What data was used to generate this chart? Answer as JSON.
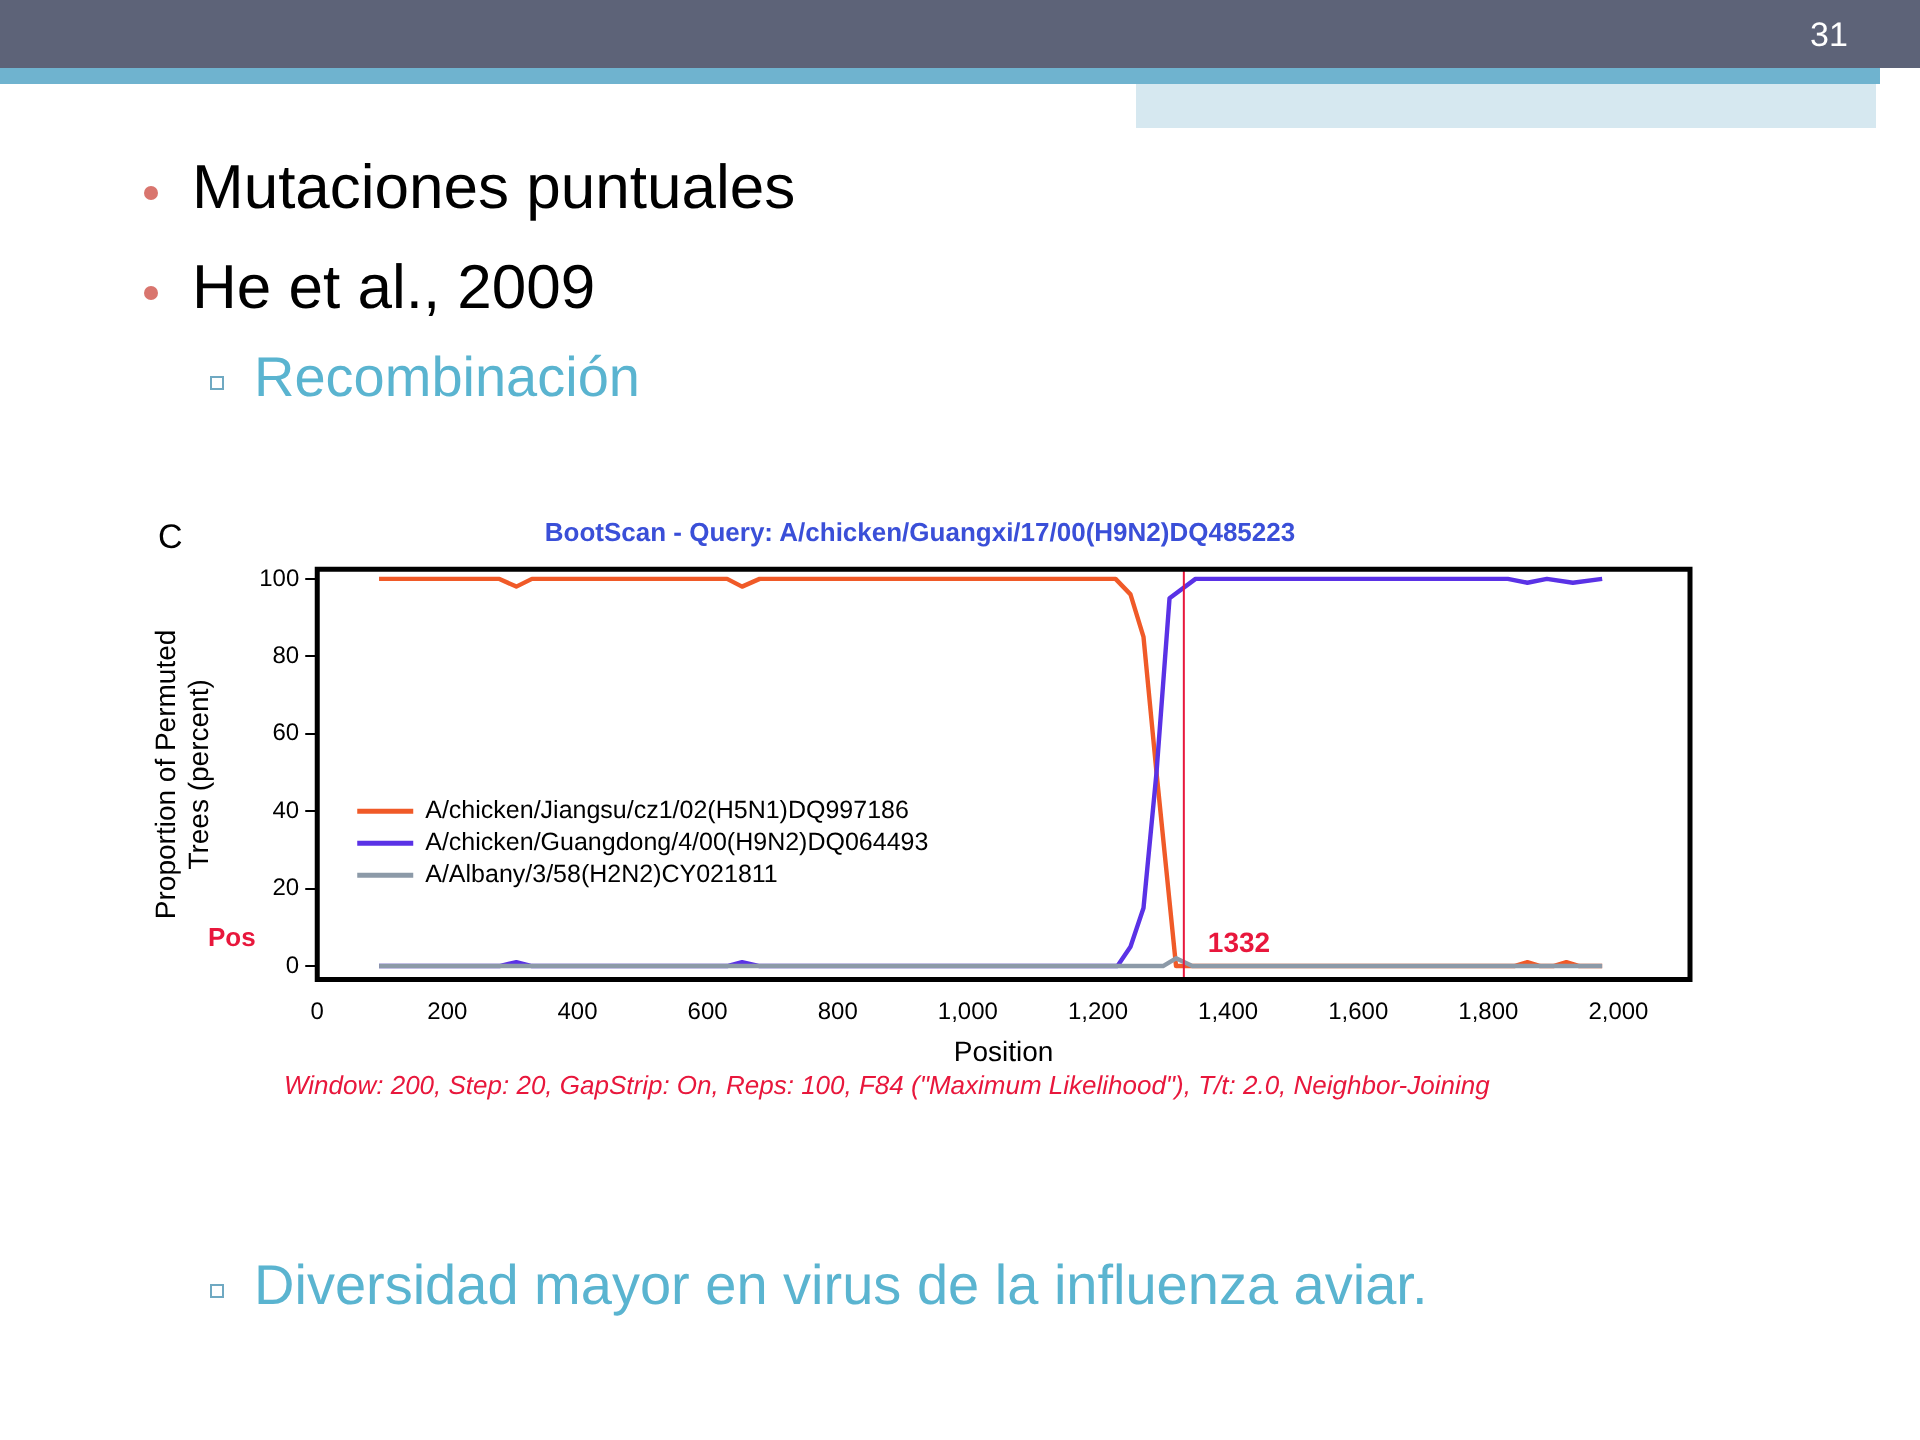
{
  "chart_data": {
    "type": "line",
    "title": "BootScan - Query: A/chicken/Guangxi/17/00(H9N2)DQ485223",
    "xlabel": "Position",
    "ylabel": "Proportion of Permuted Trees (percent)",
    "xlim": [
      0,
      2110
    ],
    "xticks": [
      0,
      200,
      400,
      600,
      800,
      {
        "value": 1000,
        "label": "1,000"
      },
      {
        "value": 1200,
        "label": "1,200"
      },
      {
        "value": 1400,
        "label": "1,400"
      },
      {
        "value": 1600,
        "label": "1,600"
      },
      {
        "value": 1800,
        "label": "1,800"
      },
      {
        "value": 2000,
        "label": "2,000"
      }
    ],
    "ylim": [
      -3.5,
      102.5
    ],
    "yticks": [
      0,
      20,
      40,
      60,
      80,
      100
    ],
    "grid": false,
    "legend": "left",
    "marker": "none",
    "line_style": "solid",
    "series": [
      {
        "name": "A/chicken/Jiangsu/cz1/02(H5N1)DQ997186",
        "color": "#f05a28",
        "x": [
          95,
          280,
          306,
          330,
          630,
          653,
          680,
          1227,
          1250,
          1270,
          1290,
          1305,
          1320,
          1400,
          1840,
          1860,
          1880,
          1900,
          1920,
          1940,
          1975
        ],
        "values": [
          100,
          100,
          98,
          100,
          100,
          98,
          100,
          100,
          96,
          85,
          50,
          25,
          0,
          0,
          0,
          1,
          0,
          0,
          1,
          0,
          0
        ]
      },
      {
        "name": "A/chicken/Guangdong/4/00(H9N2)DQ064493",
        "color": "#5a32e6",
        "x": [
          95,
          280,
          306,
          330,
          630,
          653,
          680,
          1230,
          1250,
          1270,
          1290,
          1310,
          1350,
          1830,
          1860,
          1890,
          1930,
          1975
        ],
        "values": [
          0,
          0,
          1,
          0,
          0,
          1,
          0,
          0,
          5,
          15,
          50,
          95,
          100,
          100,
          99,
          100,
          99,
          100
        ]
      },
      {
        "name": "A/Albany/3/58(H2N2)CY021811",
        "color": "#8c9aa8",
        "x": [
          95,
          1300,
          1320,
          1345,
          1975
        ],
        "values": [
          0,
          0,
          2,
          0,
          0
        ]
      }
    ],
    "ref_lines": [
      {
        "axis": "x",
        "value": 1332,
        "label": "1332",
        "color": "#e8173c"
      }
    ],
    "annotations": [
      "31",
      "Mutaciones puntuales",
      "He et al., 2009",
      "Recombinación",
      "C",
      "Pos",
      "Window: 200, Step: 20, GapStrip: On, Reps: 100, F84 (\"Maximum Likelihood\"), T/t: 2.0, Neighbor-Joining",
      "Diversidad mayor en virus de la influenza aviar."
    ]
  }
}
